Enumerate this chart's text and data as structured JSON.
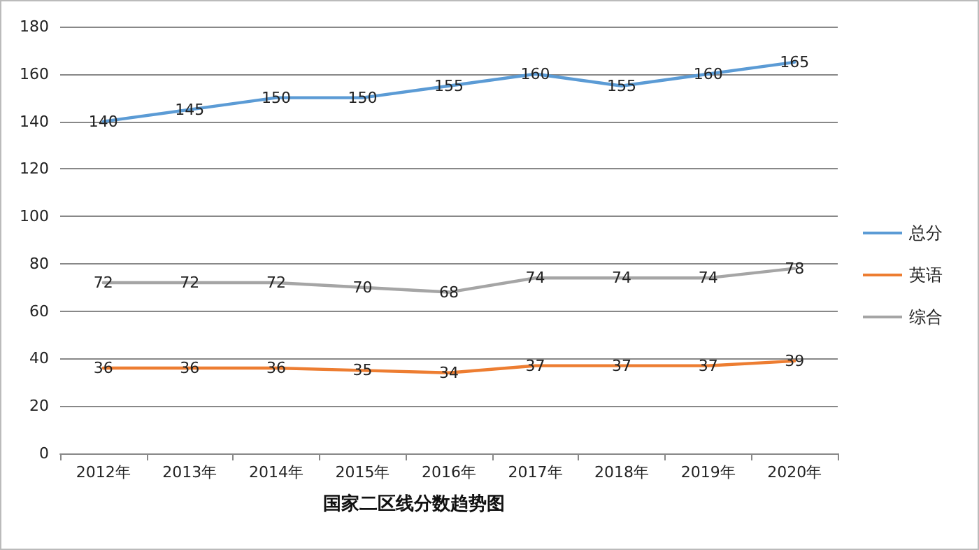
{
  "chart_data": {
    "type": "line",
    "title": "国家二区线分数趋势图",
    "categories": [
      "2012年",
      "2013年",
      "2014年",
      "2015年",
      "2016年",
      "2017年",
      "2018年",
      "2019年",
      "2020年"
    ],
    "series": [
      {
        "name": "总分",
        "color": "#5b9bd5",
        "values": [
          140,
          145,
          150,
          150,
          155,
          160,
          155,
          160,
          165
        ]
      },
      {
        "name": "英语",
        "color": "#ed7d31",
        "values": [
          36,
          36,
          36,
          35,
          34,
          37,
          37,
          37,
          39
        ]
      },
      {
        "name": "综合",
        "color": "#a5a5a5",
        "values": [
          72,
          72,
          72,
          70,
          68,
          74,
          74,
          74,
          78
        ]
      }
    ],
    "ylim": [
      0,
      180
    ],
    "yticks": [
      0,
      20,
      40,
      60,
      80,
      100,
      120,
      140,
      160,
      180
    ],
    "grid": "y",
    "legend": "right",
    "marker": "none",
    "line_style": "solid",
    "data_labels": true
  }
}
